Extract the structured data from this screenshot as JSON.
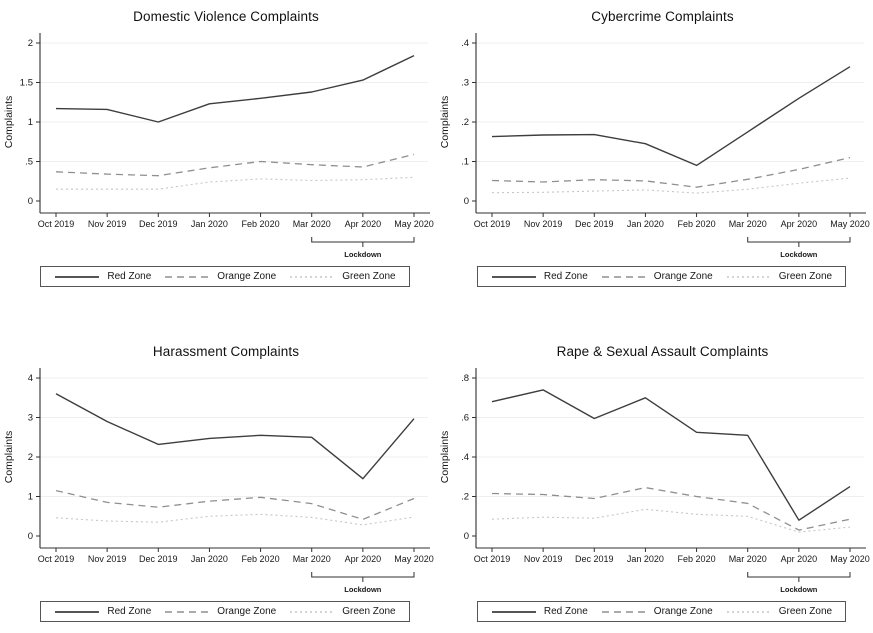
{
  "colors": {
    "red_zone": "#3d3d3d",
    "orange_zone": "#8f8f8f",
    "green_zone": "#cdc2c4",
    "axis": "#303030",
    "gridline": "#f1eef0",
    "text": "#181818",
    "legend_border": "#555555",
    "background": "#ffffff"
  },
  "line_styles": {
    "red_zone": {
      "dash": "",
      "width": 1.4
    },
    "orange_zone": {
      "dash": "7 5",
      "width": 1.3
    },
    "green_zone": {
      "dash": "2 3",
      "width": 1.1
    }
  },
  "chart_data": [
    {
      "type": "line",
      "title": "Domestic Violence Complaints",
      "ylabel": "Complaints",
      "categories": [
        "Oct 2019",
        "Nov 2019",
        "Dec 2019",
        "Jan 2020",
        "Feb 2020",
        "Mar 2020",
        "Apr 2020",
        "May 2020"
      ],
      "yticks": [
        0,
        0.5,
        1,
        1.5,
        2
      ],
      "ytick_labels": [
        "0",
        ".5",
        "1",
        "1.5",
        "2"
      ],
      "ylim": [
        0,
        2
      ],
      "grid": true,
      "legend_position": "bottom",
      "annotation": {
        "label": "Lockdown",
        "from": "Mar 2020",
        "to": "May 2020"
      },
      "series": [
        {
          "name": "Red Zone",
          "key": "red_zone",
          "values": [
            1.17,
            1.16,
            1.0,
            1.23,
            1.3,
            1.38,
            1.53,
            1.84
          ]
        },
        {
          "name": "Orange Zone",
          "key": "orange_zone",
          "values": [
            0.37,
            0.34,
            0.32,
            0.42,
            0.5,
            0.46,
            0.43,
            0.59
          ]
        },
        {
          "name": "Green Zone",
          "key": "green_zone",
          "values": [
            0.15,
            0.15,
            0.15,
            0.24,
            0.28,
            0.26,
            0.27,
            0.3
          ]
        }
      ]
    },
    {
      "type": "line",
      "title": "Cybercrime Complaints",
      "ylabel": "Complaints",
      "categories": [
        "Oct 2019",
        "Nov 2019",
        "Dec 2019",
        "Jan 2020",
        "Feb 2020",
        "Mar 2020",
        "Apr 2020",
        "May 2020"
      ],
      "yticks": [
        0,
        0.1,
        0.2,
        0.3,
        0.4
      ],
      "ytick_labels": [
        "0",
        ".1",
        ".2",
        ".3",
        ".4"
      ],
      "ylim": [
        0,
        0.4
      ],
      "grid": true,
      "legend_position": "bottom",
      "annotation": {
        "label": "Lockdown",
        "from": "Mar 2020",
        "to": "May 2020"
      },
      "series": [
        {
          "name": "Red Zone",
          "key": "red_zone",
          "values": [
            0.163,
            0.167,
            0.168,
            0.145,
            0.09,
            0.175,
            0.26,
            0.34
          ]
        },
        {
          "name": "Orange Zone",
          "key": "orange_zone",
          "values": [
            0.052,
            0.048,
            0.054,
            0.051,
            0.035,
            0.055,
            0.08,
            0.11
          ]
        },
        {
          "name": "Green Zone",
          "key": "green_zone",
          "values": [
            0.021,
            0.022,
            0.025,
            0.028,
            0.02,
            0.03,
            0.045,
            0.058
          ]
        }
      ]
    },
    {
      "type": "line",
      "title": "Harassment Complaints",
      "ylabel": "Complaints",
      "categories": [
        "Oct 2019",
        "Nov 2019",
        "Dec 2019",
        "Jan 2020",
        "Feb 2020",
        "Mar 2020",
        "Apr 2020",
        "May 2020"
      ],
      "yticks": [
        0,
        1,
        2,
        3,
        4
      ],
      "ytick_labels": [
        "0",
        "1",
        "2",
        "3",
        "4"
      ],
      "ylim": [
        0,
        4
      ],
      "grid": true,
      "legend_position": "bottom",
      "annotation": {
        "label": "Lockdown",
        "from": "Mar 2020",
        "to": "May 2020"
      },
      "series": [
        {
          "name": "Red Zone",
          "key": "red_zone",
          "values": [
            3.6,
            2.9,
            2.32,
            2.47,
            2.55,
            2.5,
            1.45,
            2.97
          ]
        },
        {
          "name": "Orange Zone",
          "key": "orange_zone",
          "values": [
            1.15,
            0.85,
            0.73,
            0.88,
            0.98,
            0.82,
            0.42,
            0.95
          ]
        },
        {
          "name": "Green Zone",
          "key": "green_zone",
          "values": [
            0.46,
            0.38,
            0.35,
            0.5,
            0.55,
            0.47,
            0.28,
            0.48
          ]
        }
      ]
    },
    {
      "type": "line",
      "title": "Rape & Sexual Assault Complaints",
      "ylabel": "Complaints",
      "categories": [
        "Oct 2019",
        "Nov 2019",
        "Dec 2019",
        "Jan 2020",
        "Feb 2020",
        "Mar 2020",
        "Apr 2020",
        "May 2020"
      ],
      "yticks": [
        0,
        0.2,
        0.4,
        0.6,
        0.8
      ],
      "ytick_labels": [
        "0",
        ".2",
        ".4",
        ".6",
        ".8"
      ],
      "ylim": [
        0,
        0.8
      ],
      "grid": true,
      "legend_position": "bottom",
      "annotation": {
        "label": "Lockdown",
        "from": "Mar 2020",
        "to": "May 2020"
      },
      "series": [
        {
          "name": "Red Zone",
          "key": "red_zone",
          "values": [
            0.68,
            0.74,
            0.595,
            0.7,
            0.525,
            0.51,
            0.08,
            0.25
          ]
        },
        {
          "name": "Orange Zone",
          "key": "orange_zone",
          "values": [
            0.215,
            0.21,
            0.19,
            0.245,
            0.2,
            0.165,
            0.03,
            0.085
          ]
        },
        {
          "name": "Green Zone",
          "key": "green_zone",
          "values": [
            0.085,
            0.095,
            0.09,
            0.135,
            0.11,
            0.1,
            0.02,
            0.045
          ]
        }
      ]
    }
  ]
}
